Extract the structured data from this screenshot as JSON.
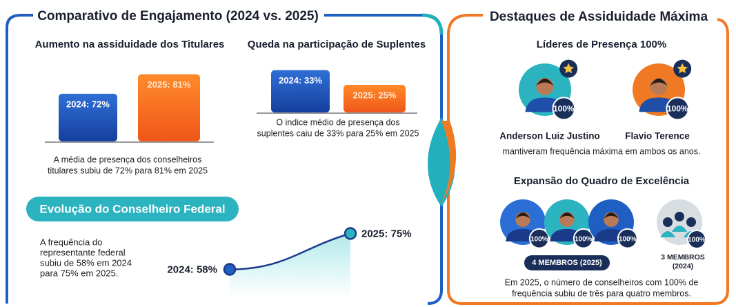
{
  "left_panel": {
    "title": "Comparativo de Engajamento (2024 vs. 2025)",
    "titulares": {
      "title": "Aumento na assiduidade dos Titulares",
      "bars": [
        {
          "label": "2024: 72%",
          "value": 72
        },
        {
          "label": "2025: 81%",
          "value": 81
        }
      ],
      "caption": [
        "A média de presença dos conselheiros",
        "titulares subiu de 72% para 81% em 2025"
      ]
    },
    "suplentes": {
      "title": "Queda na participação de Suplentes",
      "bars": [
        {
          "label": "2024: 33%",
          "value": 33
        },
        {
          "label": "2025: 25%",
          "value": 25
        }
      ],
      "caption": [
        "O indice médio de presença dos",
        "suplentes caiu de 33% para 25% em 2025"
      ]
    },
    "federal": {
      "title": "Evolução do Conselheiro Federal",
      "text": [
        "A frequência do",
        "representante federal",
        "subiu de 58% em 2024",
        "para 75% em 2025."
      ],
      "points": [
        {
          "label": "2024: 58%",
          "value": 58
        },
        {
          "label": "2025: 75%",
          "value": 75
        }
      ]
    }
  },
  "right_panel": {
    "title": "Destaques de Assiduidade Máxima",
    "leaders": {
      "title": "Líderes de Presença 100%",
      "people": [
        {
          "name": "Anderson Luiz Justino",
          "badge": "100%"
        },
        {
          "name": "Flavio Terence",
          "badge": "100%"
        }
      ],
      "caption": "mantiveram frequência máxima em ambos os anos."
    },
    "expansion": {
      "title": "Expansão do Quadro de Excelência",
      "members_2025": {
        "badges": [
          "100%",
          "100%",
          "100%"
        ],
        "label": "4 MEMBROS (2025)"
      },
      "members_2024": {
        "badge": "100%",
        "label": [
          "3 MEMBROS",
          "(2024)"
        ]
      },
      "caption": [
        "Em 2025, o número de conselheiros com 100% de",
        "frequência subiu de três para quatro membros."
      ]
    }
  }
}
